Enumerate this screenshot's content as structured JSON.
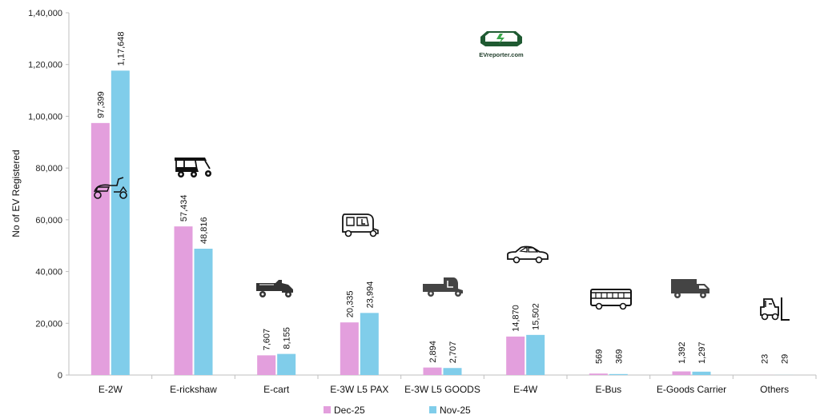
{
  "chart_data": {
    "type": "bar",
    "categories": [
      "E-2W",
      "E-rickshaw",
      "E-cart",
      "E-3W L5 PAX",
      "E-3W L5 GOODS",
      "E-4W",
      "E-Bus",
      "E-Goods Carrier",
      "Others"
    ],
    "series": [
      {
        "name": "Dec-25",
        "values": [
          97399,
          57434,
          7607,
          20335,
          2894,
          14870,
          569,
          1392,
          23
        ],
        "labels": [
          "97,399",
          "57,434",
          "7,607",
          "20,335",
          "2,894",
          "14,870",
          "569",
          "1,392",
          "23"
        ],
        "color": "#e39fdd"
      },
      {
        "name": "Nov-25",
        "values": [
          117648,
          48816,
          8155,
          23994,
          2707,
          15502,
          369,
          1297,
          29
        ],
        "labels": [
          "1,17,648",
          "48,816",
          "8,155",
          "23,994",
          "2,707",
          "15,502",
          "369",
          "1,297",
          "29"
        ],
        "color": "#80cdea"
      }
    ],
    "ylabel": "No of EV Registered",
    "xlabel": "",
    "ylim": [
      0,
      140000
    ],
    "yticks": [
      0,
      20000,
      40000,
      60000,
      80000,
      100000,
      120000,
      140000
    ],
    "ytick_labels": [
      "0",
      "20,000",
      "40,000",
      "60,000",
      "80,000",
      "1,00,000",
      "1,20,000",
      "1,40,000"
    ],
    "grid": false,
    "legend_position": "bottom-center",
    "category_icons": [
      "scooter-icon",
      "rickshaw-icon",
      "cart-icon",
      "auto-rickshaw-icon",
      "goods-auto-icon",
      "car-icon",
      "bus-icon",
      "truck-icon",
      "forklift-icon"
    ]
  },
  "logo": {
    "text": "EVreporter.com",
    "color": "#1f5a32"
  }
}
